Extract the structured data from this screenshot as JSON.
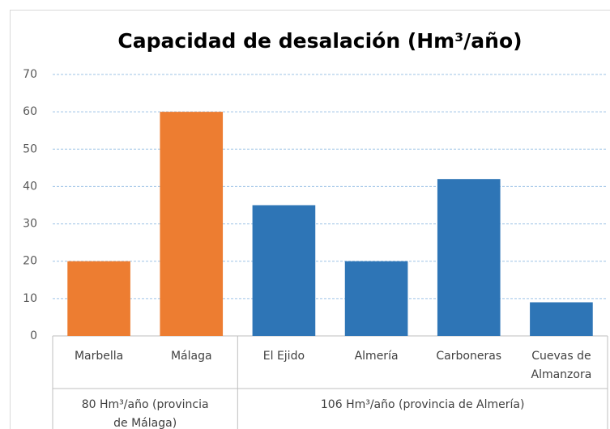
{
  "chart_data": {
    "type": "bar",
    "title": "Capacidad de desalación (Hm³/año)",
    "groups": [
      {
        "label": "80 Hm³/año (provincia de Málaga)",
        "categories": [
          "Marbella",
          "Málaga"
        ],
        "values": [
          20,
          60
        ],
        "color": "#ED7D31"
      },
      {
        "label": "106 Hm³/año (provincia de Almería)",
        "categories": [
          "El Ejido",
          "Almería",
          "Carboneras",
          "Cuevas de Almanzora"
        ],
        "values": [
          35,
          20,
          42,
          9
        ],
        "color": "#2E75B6"
      }
    ],
    "ylim": [
      0,
      70
    ],
    "yticks": [
      0,
      10,
      20,
      30,
      40,
      50,
      60,
      70
    ],
    "grid": true
  }
}
